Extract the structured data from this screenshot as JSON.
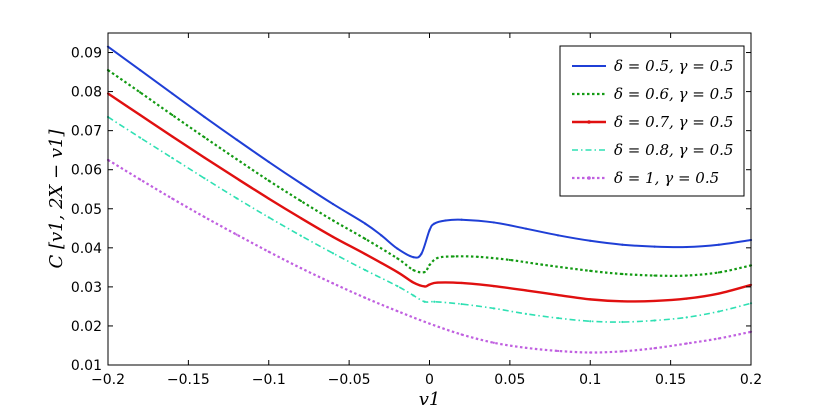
{
  "chart_data": {
    "type": "line",
    "title": "",
    "xlabel": "v1",
    "ylabel": "C [v1, 2X − v1]",
    "xlim": [
      -0.2,
      0.2
    ],
    "ylim": [
      0.01,
      0.095
    ],
    "x_ticks": [
      "−0.2",
      "−0.15",
      "−0.1",
      "−0.05",
      "0",
      "0.05",
      "0.1",
      "0.15",
      "0.2"
    ],
    "y_ticks": [
      "0.01",
      "0.02",
      "0.03",
      "0.04",
      "0.05",
      "0.06",
      "0.07",
      "0.08",
      "0.09"
    ],
    "grid": false,
    "legend_position": "top-right",
    "series": [
      {
        "name": "δ = 0.5, γ = 0.5",
        "color": "#1f3fd6",
        "style": "solid",
        "points": [
          [
            -0.2,
            0.0915
          ],
          [
            -0.18,
            0.0855
          ],
          [
            -0.16,
            0.0795
          ],
          [
            -0.14,
            0.0735
          ],
          [
            -0.12,
            0.0677
          ],
          [
            -0.1,
            0.062
          ],
          [
            -0.08,
            0.0565
          ],
          [
            -0.06,
            0.0512
          ],
          [
            -0.04,
            0.0462
          ],
          [
            -0.03,
            0.0432
          ],
          [
            -0.02,
            0.0398
          ],
          [
            -0.01,
            0.0376
          ],
          [
            -0.005,
            0.0385
          ],
          [
            0,
            0.0445
          ],
          [
            0.003,
            0.0462
          ],
          [
            0.01,
            0.047
          ],
          [
            0.02,
            0.0472
          ],
          [
            0.04,
            0.0465
          ],
          [
            0.06,
            0.0449
          ],
          [
            0.08,
            0.0432
          ],
          [
            0.1,
            0.0418
          ],
          [
            0.12,
            0.0408
          ],
          [
            0.14,
            0.0403
          ],
          [
            0.16,
            0.0402
          ],
          [
            0.18,
            0.0408
          ],
          [
            0.2,
            0.042
          ]
        ]
      },
      {
        "name": "δ = 0.6, γ = 0.5",
        "color": "#139a13",
        "style": "dotted",
        "points": [
          [
            -0.2,
            0.0855
          ],
          [
            -0.18,
            0.0798
          ],
          [
            -0.16,
            0.074
          ],
          [
            -0.14,
            0.0683
          ],
          [
            -0.12,
            0.0627
          ],
          [
            -0.1,
            0.0572
          ],
          [
            -0.08,
            0.052
          ],
          [
            -0.06,
            0.047
          ],
          [
            -0.04,
            0.0423
          ],
          [
            -0.02,
            0.0373
          ],
          [
            -0.01,
            0.0343
          ],
          [
            -0.003,
            0.0338
          ],
          [
            0,
            0.0356
          ],
          [
            0.005,
            0.0374
          ],
          [
            0.015,
            0.0378
          ],
          [
            0.03,
            0.0377
          ],
          [
            0.05,
            0.0369
          ],
          [
            0.07,
            0.0357
          ],
          [
            0.1,
            0.0341
          ],
          [
            0.12,
            0.0333
          ],
          [
            0.14,
            0.0329
          ],
          [
            0.16,
            0.0329
          ],
          [
            0.18,
            0.0337
          ],
          [
            0.2,
            0.0355
          ]
        ]
      },
      {
        "name": "δ = 0.7, γ = 0.5",
        "color": "#e01010",
        "style": "solid-marker",
        "points": [
          [
            -0.2,
            0.0795
          ],
          [
            -0.18,
            0.074
          ],
          [
            -0.16,
            0.0685
          ],
          [
            -0.14,
            0.0631
          ],
          [
            -0.12,
            0.0578
          ],
          [
            -0.1,
            0.0526
          ],
          [
            -0.08,
            0.0476
          ],
          [
            -0.06,
            0.0428
          ],
          [
            -0.04,
            0.0384
          ],
          [
            -0.02,
            0.0338
          ],
          [
            -0.01,
            0.0311
          ],
          [
            -0.003,
            0.0301
          ],
          [
            0,
            0.0306
          ],
          [
            0.005,
            0.0311
          ],
          [
            0.02,
            0.031
          ],
          [
            0.04,
            0.0302
          ],
          [
            0.06,
            0.0291
          ],
          [
            0.08,
            0.0279
          ],
          [
            0.1,
            0.0268
          ],
          [
            0.12,
            0.0263
          ],
          [
            0.14,
            0.0264
          ],
          [
            0.16,
            0.027
          ],
          [
            0.18,
            0.0283
          ],
          [
            0.2,
            0.0305
          ]
        ]
      },
      {
        "name": "δ = 0.8, γ = 0.5",
        "color": "#2fe0b3",
        "style": "dashdot",
        "points": [
          [
            -0.2,
            0.0735
          ],
          [
            -0.18,
            0.0682
          ],
          [
            -0.16,
            0.063
          ],
          [
            -0.14,
            0.0578
          ],
          [
            -0.12,
            0.0527
          ],
          [
            -0.1,
            0.0478
          ],
          [
            -0.08,
            0.0431
          ],
          [
            -0.06,
            0.0386
          ],
          [
            -0.04,
            0.0343
          ],
          [
            -0.02,
            0.0302
          ],
          [
            -0.01,
            0.0278
          ],
          [
            -0.003,
            0.0262
          ],
          [
            0.003,
            0.0262
          ],
          [
            0.02,
            0.0256
          ],
          [
            0.04,
            0.0245
          ],
          [
            0.06,
            0.0231
          ],
          [
            0.08,
            0.022
          ],
          [
            0.1,
            0.0212
          ],
          [
            0.12,
            0.021
          ],
          [
            0.14,
            0.0214
          ],
          [
            0.16,
            0.0222
          ],
          [
            0.18,
            0.0237
          ],
          [
            0.2,
            0.0258
          ]
        ]
      },
      {
        "name": "δ = 1, γ = 0.5",
        "color": "#c060e0",
        "style": "dotted-marker",
        "points": [
          [
            -0.2,
            0.0625
          ],
          [
            -0.18,
            0.0575
          ],
          [
            -0.16,
            0.0526
          ],
          [
            -0.14,
            0.0479
          ],
          [
            -0.12,
            0.0434
          ],
          [
            -0.1,
            0.039
          ],
          [
            -0.08,
            0.0348
          ],
          [
            -0.06,
            0.0309
          ],
          [
            -0.04,
            0.0272
          ],
          [
            -0.02,
            0.0238
          ],
          [
            0,
            0.0206
          ],
          [
            0.02,
            0.0178
          ],
          [
            0.04,
            0.0157
          ],
          [
            0.06,
            0.0144
          ],
          [
            0.08,
            0.0136
          ],
          [
            0.1,
            0.0132
          ],
          [
            0.12,
            0.0135
          ],
          [
            0.14,
            0.0143
          ],
          [
            0.16,
            0.0155
          ],
          [
            0.18,
            0.0168
          ],
          [
            0.2,
            0.0185
          ]
        ]
      }
    ]
  }
}
